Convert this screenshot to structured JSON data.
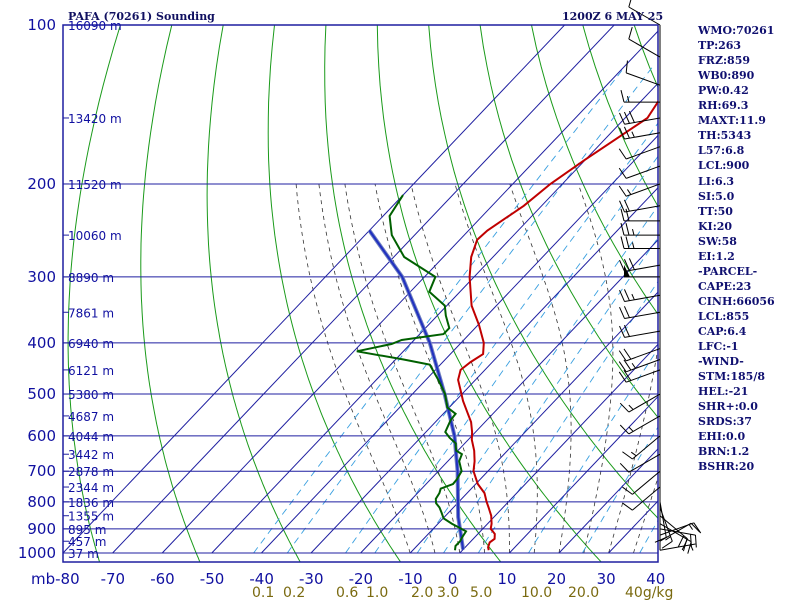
{
  "header": {
    "station_title": "PAFA (70261) Sounding",
    "valid_time": "1200Z  6 MAY 25"
  },
  "colors": {
    "grid": "#1f1fa0",
    "dry_adiabat": "#1a9a1a",
    "moist_adiabat": "#333333",
    "mixing_ratio": "#3aa0e0",
    "temperature": "#c00000",
    "dewpoint": "#006000",
    "parcel": "#2030c0",
    "index_text": "#101070",
    "mixing_label": "#7a6a10"
  },
  "chart_data": {
    "type": "line",
    "title": "PAFA (70261) Sounding",
    "xlabel": "",
    "ylabel": "mb",
    "x_axis_unit": "°C",
    "xlim": [
      -80,
      40
    ],
    "ylim": [
      1000,
      100
    ],
    "y_scale": "log-pressure",
    "pressure_levels": [
      100,
      200,
      300,
      400,
      500,
      600,
      700,
      800,
      900,
      1000
    ],
    "pressure_tick_labels": [
      "100",
      "200",
      "300",
      "400",
      "500",
      "600",
      "700",
      "800",
      "900",
      "1000"
    ],
    "temperature_ticks": [
      -80,
      -70,
      -60,
      -50,
      -40,
      -30,
      -20,
      -10,
      0,
      10,
      20,
      30,
      40
    ],
    "temperature_tick_labels": [
      "mb-80",
      "-70",
      "-60",
      "-50",
      "-40",
      "-30",
      "-20",
      "-10",
      "0",
      "10",
      "20",
      "30",
      "40"
    ],
    "height_labels": [
      {
        "p": 100,
        "label": "16090 m"
      },
      {
        "p": 150,
        "label": "13420 m"
      },
      {
        "p": 200,
        "label": "11520 m"
      },
      {
        "p": 250,
        "label": "10060 m"
      },
      {
        "p": 300,
        "label": "8890 m"
      },
      {
        "p": 350,
        "label": "7861 m"
      },
      {
        "p": 400,
        "label": "6940 m"
      },
      {
        "p": 450,
        "label": "6121 m"
      },
      {
        "p": 500,
        "label": "5380 m"
      },
      {
        "p": 550,
        "label": "4687 m"
      },
      {
        "p": 600,
        "label": "4044 m"
      },
      {
        "p": 650,
        "label": "3442 m"
      },
      {
        "p": 700,
        "label": "2878 m"
      },
      {
        "p": 750,
        "label": "2344 m"
      },
      {
        "p": 800,
        "label": "1836 m"
      },
      {
        "p": 850,
        "label": "1355 m"
      },
      {
        "p": 900,
        "label": "895 m"
      },
      {
        "p": 950,
        "label": "457 m"
      },
      {
        "p": 1000,
        "label": "37 m"
      }
    ],
    "mixing_ratio_labels": [
      "0.1",
      "0.2",
      "0.6",
      "1.0",
      "2.0",
      "3.0",
      "5.0",
      "10.0",
      "20.0",
      "40g/kg"
    ],
    "series": [
      {
        "name": "",
        "role": "temperature",
        "points": [
          {
            "p": 988,
            "t": 5.3
          },
          {
            "p": 975,
            "t": 4.6
          },
          {
            "p": 955,
            "t": 4.0
          },
          {
            "p": 940,
            "t": 4.3
          },
          {
            "p": 920,
            "t": 3.4
          },
          {
            "p": 900,
            "t": 1.6
          },
          {
            "p": 880,
            "t": 0.8
          },
          {
            "p": 850,
            "t": -0.8
          },
          {
            "p": 820,
            "t": -2.9
          },
          {
            "p": 800,
            "t": -4.4
          },
          {
            "p": 770,
            "t": -6.5
          },
          {
            "p": 740,
            "t": -9.6
          },
          {
            "p": 700,
            "t": -12.9
          },
          {
            "p": 670,
            "t": -14.6
          },
          {
            "p": 640,
            "t": -16.7
          },
          {
            "p": 610,
            "t": -19.3
          },
          {
            "p": 590,
            "t": -20.7
          },
          {
            "p": 565,
            "t": -22.8
          },
          {
            "p": 540,
            "t": -25.6
          },
          {
            "p": 515,
            "t": -28.5
          },
          {
            "p": 500,
            "t": -30.1
          },
          {
            "p": 470,
            "t": -33.5
          },
          {
            "p": 450,
            "t": -34.9
          },
          {
            "p": 435,
            "t": -34.4
          },
          {
            "p": 420,
            "t": -33.4
          },
          {
            "p": 400,
            "t": -35.4
          },
          {
            "p": 370,
            "t": -39.8
          },
          {
            "p": 340,
            "t": -45.0
          },
          {
            "p": 300,
            "t": -50.9
          },
          {
            "p": 275,
            "t": -54.4
          },
          {
            "p": 255,
            "t": -56.5
          },
          {
            "p": 245,
            "t": -56.2
          },
          {
            "p": 220,
            "t": -53.6
          },
          {
            "p": 200,
            "t": -52.4
          },
          {
            "p": 180,
            "t": -50.1
          },
          {
            "p": 150,
            "t": -45.5
          },
          {
            "p": 125,
            "t": -48.0
          },
          {
            "p": 100,
            "t": -51.5
          }
        ]
      },
      {
        "name": "",
        "role": "dewpoint",
        "points": [
          {
            "p": 988,
            "t": -1.5
          },
          {
            "p": 970,
            "t": -2.2
          },
          {
            "p": 950,
            "t": -2.2
          },
          {
            "p": 930,
            "t": -2.6
          },
          {
            "p": 910,
            "t": -2.9
          },
          {
            "p": 895,
            "t": -5.0
          },
          {
            "p": 880,
            "t": -7.2
          },
          {
            "p": 860,
            "t": -9.9
          },
          {
            "p": 840,
            "t": -11.3
          },
          {
            "p": 820,
            "t": -12.8
          },
          {
            "p": 805,
            "t": -14.3
          },
          {
            "p": 790,
            "t": -15.2
          },
          {
            "p": 770,
            "t": -15.6
          },
          {
            "p": 755,
            "t": -16.2
          },
          {
            "p": 740,
            "t": -14.6
          },
          {
            "p": 725,
            "t": -14.7
          },
          {
            "p": 700,
            "t": -15.3
          },
          {
            "p": 670,
            "t": -17.7
          },
          {
            "p": 650,
            "t": -18.5
          },
          {
            "p": 640,
            "t": -20.3
          },
          {
            "p": 630,
            "t": -21.1
          },
          {
            "p": 620,
            "t": -21.8
          },
          {
            "p": 605,
            "t": -24.1
          },
          {
            "p": 590,
            "t": -26.1
          },
          {
            "p": 560,
            "t": -27.3
          },
          {
            "p": 545,
            "t": -27.5
          },
          {
            "p": 530,
            "t": -30.4
          },
          {
            "p": 500,
            "t": -33.4
          },
          {
            "p": 470,
            "t": -37.5
          },
          {
            "p": 440,
            "t": -42.1
          },
          {
            "p": 430,
            "t": -48.4
          },
          {
            "p": 415,
            "t": -59.4
          },
          {
            "p": 402,
            "t": -53.8
          },
          {
            "p": 395,
            "t": -52.5
          },
          {
            "p": 385,
            "t": -45.2
          },
          {
            "p": 375,
            "t": -45.2
          },
          {
            "p": 355,
            "t": -48.3
          },
          {
            "p": 340,
            "t": -50.4
          },
          {
            "p": 320,
            "t": -56.2
          },
          {
            "p": 300,
            "t": -57.8
          },
          {
            "p": 275,
            "t": -67.9
          },
          {
            "p": 250,
            "t": -74.6
          },
          {
            "p": 230,
            "t": -78.7
          },
          {
            "p": 210,
            "t": -80.0
          }
        ]
      },
      {
        "name": "",
        "role": "parcel",
        "points": [
          {
            "p": 985,
            "t": 0.0
          },
          {
            "p": 855,
            "t": -7.2
          },
          {
            "p": 700,
            "t": -16.1
          },
          {
            "p": 600,
            "t": -23.5
          },
          {
            "p": 500,
            "t": -33.5
          },
          {
            "p": 400,
            "t": -46.3
          },
          {
            "p": 300,
            "t": -64.5
          },
          {
            "p": 245,
            "t": -80.0
          }
        ]
      }
    ],
    "dry_adiabats_theta_K": [
      200,
      220,
      240,
      260,
      280,
      300,
      320,
      340,
      360,
      380,
      400,
      420,
      440,
      460,
      480,
      500,
      520,
      540,
      560,
      580
    ],
    "moist_adiabats_theta_w_C": [
      -10,
      -5,
      0,
      5,
      10,
      15,
      20,
      25,
      30,
      35,
      40
    ],
    "mixing_ratio_lines_gkg": [
      0.1,
      0.2,
      0.6,
      1.0,
      2.0,
      3.0,
      5.0,
      10.0,
      20.0,
      40.0
    ],
    "wind_barbs": [
      {
        "p": 988,
        "dir": 80,
        "kt": 5
      },
      {
        "p": 950,
        "dir": 60,
        "kt": 10
      },
      {
        "p": 925,
        "dir": 70,
        "kt": 15
      },
      {
        "p": 900,
        "dir": 100,
        "kt": 20
      },
      {
        "p": 880,
        "dir": 120,
        "kt": 20
      },
      {
        "p": 850,
        "dir": 130,
        "kt": 20
      },
      {
        "p": 820,
        "dir": 160,
        "kt": 15
      },
      {
        "p": 800,
        "dir": 170,
        "kt": 10
      },
      {
        "p": 750,
        "dir": 230,
        "kt": 10
      },
      {
        "p": 700,
        "dir": 230,
        "kt": 10
      },
      {
        "p": 650,
        "dir": 240,
        "kt": 10
      },
      {
        "p": 600,
        "dir": 230,
        "kt": 15
      },
      {
        "p": 550,
        "dir": 240,
        "kt": 15
      },
      {
        "p": 500,
        "dir": 240,
        "kt": 15
      },
      {
        "p": 450,
        "dir": 250,
        "kt": 20
      },
      {
        "p": 430,
        "dir": 250,
        "kt": 25
      },
      {
        "p": 410,
        "dir": 250,
        "kt": 20
      },
      {
        "p": 380,
        "dir": 260,
        "kt": 20
      },
      {
        "p": 350,
        "dir": 260,
        "kt": 20
      },
      {
        "p": 325,
        "dir": 260,
        "kt": 25
      },
      {
        "p": 300,
        "dir": 270,
        "kt": 50
      },
      {
        "p": 285,
        "dir": 260,
        "kt": 30
      },
      {
        "p": 265,
        "dir": 270,
        "kt": 25
      },
      {
        "p": 250,
        "dir": 270,
        "kt": 25
      },
      {
        "p": 235,
        "dir": 270,
        "kt": 20
      },
      {
        "p": 220,
        "dir": 260,
        "kt": 20
      },
      {
        "p": 200,
        "dir": 250,
        "kt": 15
      },
      {
        "p": 185,
        "dir": 250,
        "kt": 10
      },
      {
        "p": 170,
        "dir": 250,
        "kt": 10
      },
      {
        "p": 160,
        "dir": 260,
        "kt": 25
      },
      {
        "p": 150,
        "dir": 260,
        "kt": 30
      },
      {
        "p": 140,
        "dir": 270,
        "kt": 15
      },
      {
        "p": 130,
        "dir": 290,
        "kt": 10
      },
      {
        "p": 115,
        "dir": 300,
        "kt": 10
      },
      {
        "p": 100,
        "dir": 300,
        "kt": 10
      }
    ]
  },
  "indices": [
    "WMO:70261",
    "TP:263",
    "FRZ:859",
    "WB0:890",
    "PW:0.42",
    "RH:69.3",
    "MAXT:11.9",
    "TH:5343",
    "L57:6.8",
    "LCL:900",
    "LI:6.3",
    "SI:5.0",
    "TT:50",
    "KI:20",
    "SW:58",
    "EI:1.2",
    "-PARCEL-",
    "CAPE:23",
    "CINH:66056",
    "LCL:855",
    "CAP:6.4",
    "LFC:-1",
    "-WIND-",
    "STM:185/8",
    "HEL:-21",
    "SHR+:0.0",
    "SRDS:37",
    "EHI:0.0",
    "BRN:1.2",
    "BSHR:20"
  ]
}
